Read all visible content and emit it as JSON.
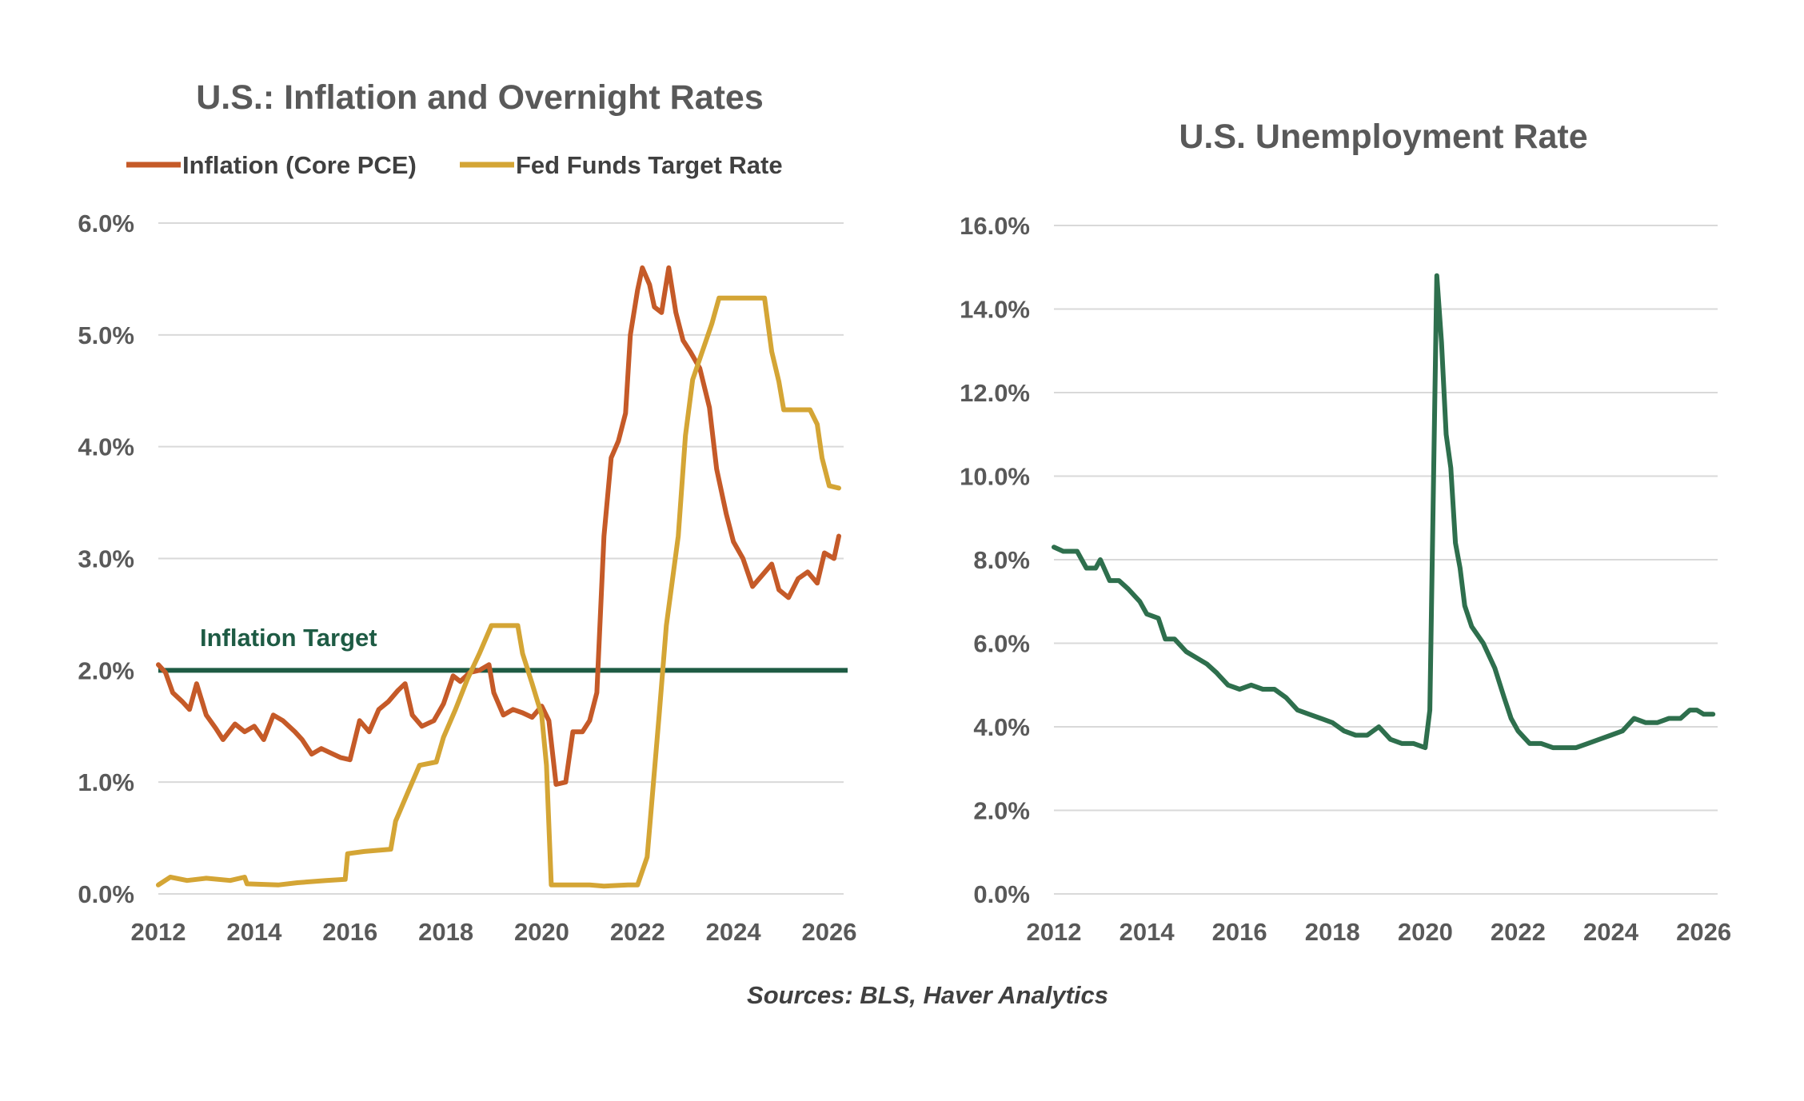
{
  "source_note": "Sources: BLS, Haver Analytics",
  "colors": {
    "inflation": "#c55a28",
    "fed_funds": "#d4a535",
    "target": "#1e5b44",
    "unemployment": "#2e6f4d",
    "grid": "#d9d9d9",
    "text": "#595959"
  },
  "chart_data": [
    {
      "type": "line",
      "title": "U.S.: Inflation and Overnight Rates",
      "xlabel": "",
      "ylabel": "",
      "xlim": [
        2012,
        2026.3
      ],
      "ylim": [
        0,
        6
      ],
      "x_ticks": [
        2012,
        2014,
        2016,
        2018,
        2020,
        2022,
        2024,
        2026
      ],
      "x_tick_labels": [
        "2012",
        "2014",
        "2016",
        "2018",
        "2020",
        "2022",
        "2024",
        "2026"
      ],
      "y_ticks": [
        0,
        1,
        2,
        3,
        4,
        5,
        6
      ],
      "y_tick_labels": [
        "0.0%",
        "1.0%",
        "2.0%",
        "3.0%",
        "4.0%",
        "5.0%",
        "6.0%"
      ],
      "grid": true,
      "legend": "top",
      "series": [
        {
          "name": "Inflation (Core PCE)",
          "color": "#c55a28",
          "points": [
            [
              2012.0,
              2.05
            ],
            [
              2012.15,
              1.98
            ],
            [
              2012.3,
              1.8
            ],
            [
              2012.5,
              1.72
            ],
            [
              2012.65,
              1.65
            ],
            [
              2012.8,
              1.88
            ],
            [
              2013.0,
              1.6
            ],
            [
              2013.2,
              1.48
            ],
            [
              2013.35,
              1.38
            ],
            [
              2013.6,
              1.52
            ],
            [
              2013.8,
              1.45
            ],
            [
              2014.0,
              1.5
            ],
            [
              2014.2,
              1.38
            ],
            [
              2014.4,
              1.6
            ],
            [
              2014.6,
              1.55
            ],
            [
              2014.85,
              1.45
            ],
            [
              2015.0,
              1.38
            ],
            [
              2015.2,
              1.25
            ],
            [
              2015.4,
              1.3
            ],
            [
              2015.6,
              1.26
            ],
            [
              2015.8,
              1.22
            ],
            [
              2016.0,
              1.2
            ],
            [
              2016.2,
              1.55
            ],
            [
              2016.4,
              1.45
            ],
            [
              2016.6,
              1.65
            ],
            [
              2016.8,
              1.72
            ],
            [
              2017.0,
              1.82
            ],
            [
              2017.15,
              1.88
            ],
            [
              2017.3,
              1.6
            ],
            [
              2017.5,
              1.5
            ],
            [
              2017.75,
              1.55
            ],
            [
              2017.95,
              1.7
            ],
            [
              2018.15,
              1.95
            ],
            [
              2018.3,
              1.9
            ],
            [
              2018.5,
              1.98
            ],
            [
              2018.7,
              2.0
            ],
            [
              2018.9,
              2.05
            ],
            [
              2019.0,
              1.8
            ],
            [
              2019.2,
              1.6
            ],
            [
              2019.4,
              1.65
            ],
            [
              2019.6,
              1.62
            ],
            [
              2019.8,
              1.58
            ],
            [
              2020.0,
              1.68
            ],
            [
              2020.15,
              1.55
            ],
            [
              2020.3,
              0.98
            ],
            [
              2020.5,
              1.0
            ],
            [
              2020.65,
              1.45
            ],
            [
              2020.85,
              1.45
            ],
            [
              2021.0,
              1.55
            ],
            [
              2021.15,
              1.8
            ],
            [
              2021.3,
              3.2
            ],
            [
              2021.45,
              3.9
            ],
            [
              2021.6,
              4.05
            ],
            [
              2021.75,
              4.3
            ],
            [
              2021.85,
              5.0
            ],
            [
              2022.0,
              5.4
            ],
            [
              2022.1,
              5.6
            ],
            [
              2022.25,
              5.45
            ],
            [
              2022.35,
              5.25
            ],
            [
              2022.5,
              5.2
            ],
            [
              2022.65,
              5.6
            ],
            [
              2022.8,
              5.2
            ],
            [
              2022.95,
              4.95
            ],
            [
              2023.1,
              4.85
            ],
            [
              2023.3,
              4.7
            ],
            [
              2023.5,
              4.35
            ],
            [
              2023.65,
              3.8
            ],
            [
              2023.85,
              3.4
            ],
            [
              2024.0,
              3.15
            ],
            [
              2024.2,
              3.0
            ],
            [
              2024.4,
              2.75
            ],
            [
              2024.6,
              2.85
            ],
            [
              2024.8,
              2.95
            ],
            [
              2024.95,
              2.72
            ],
            [
              2025.15,
              2.65
            ],
            [
              2025.35,
              2.82
            ],
            [
              2025.55,
              2.88
            ],
            [
              2025.75,
              2.78
            ],
            [
              2025.9,
              3.05
            ],
            [
              2026.1,
              3.0
            ],
            [
              2026.2,
              3.2
            ]
          ]
        },
        {
          "name": "Fed Funds Target Rate",
          "color": "#d4a535",
          "points": [
            [
              2012.0,
              0.08
            ],
            [
              2012.25,
              0.15
            ],
            [
              2012.6,
              0.12
            ],
            [
              2013.0,
              0.14
            ],
            [
              2013.5,
              0.12
            ],
            [
              2013.8,
              0.15
            ],
            [
              2013.85,
              0.09
            ],
            [
              2014.5,
              0.08
            ],
            [
              2014.9,
              0.1
            ],
            [
              2015.5,
              0.12
            ],
            [
              2015.9,
              0.13
            ],
            [
              2015.95,
              0.36
            ],
            [
              2016.3,
              0.38
            ],
            [
              2016.85,
              0.4
            ],
            [
              2016.95,
              0.65
            ],
            [
              2017.2,
              0.9
            ],
            [
              2017.45,
              1.15
            ],
            [
              2017.8,
              1.18
            ],
            [
              2017.95,
              1.4
            ],
            [
              2018.2,
              1.65
            ],
            [
              2018.45,
              1.92
            ],
            [
              2018.7,
              2.15
            ],
            [
              2018.95,
              2.4
            ],
            [
              2019.5,
              2.4
            ],
            [
              2019.6,
              2.15
            ],
            [
              2019.8,
              1.88
            ],
            [
              2020.0,
              1.6
            ],
            [
              2020.1,
              1.15
            ],
            [
              2020.2,
              0.08
            ],
            [
              2020.5,
              0.08
            ],
            [
              2021.0,
              0.08
            ],
            [
              2021.3,
              0.07
            ],
            [
              2021.8,
              0.08
            ],
            [
              2022.0,
              0.08
            ],
            [
              2022.2,
              0.33
            ],
            [
              2022.45,
              1.6
            ],
            [
              2022.6,
              2.4
            ],
            [
              2022.85,
              3.2
            ],
            [
              2023.0,
              4.1
            ],
            [
              2023.15,
              4.6
            ],
            [
              2023.35,
              4.85
            ],
            [
              2023.55,
              5.1
            ],
            [
              2023.7,
              5.33
            ],
            [
              2024.3,
              5.33
            ],
            [
              2024.65,
              5.33
            ],
            [
              2024.8,
              4.85
            ],
            [
              2024.95,
              4.58
            ],
            [
              2025.05,
              4.33
            ],
            [
              2025.6,
              4.33
            ],
            [
              2025.75,
              4.2
            ],
            [
              2025.85,
              3.9
            ],
            [
              2026.0,
              3.65
            ],
            [
              2026.2,
              3.63
            ]
          ]
        }
      ],
      "reference_lines": [
        {
          "label": "Inflation Target",
          "y": 2.0,
          "color": "#1e5b44"
        }
      ]
    },
    {
      "type": "line",
      "title": "U.S. Unemployment Rate",
      "xlabel": "",
      "ylabel": "",
      "xlim": [
        2012,
        2026.3
      ],
      "ylim": [
        0,
        16
      ],
      "x_ticks": [
        2012,
        2014,
        2016,
        2018,
        2020,
        2022,
        2024,
        2026
      ],
      "x_tick_labels": [
        "2012",
        "2014",
        "2016",
        "2018",
        "2020",
        "2022",
        "2024",
        "2026"
      ],
      "y_ticks": [
        0,
        2,
        4,
        6,
        8,
        10,
        12,
        14,
        16
      ],
      "y_tick_labels": [
        "0.0%",
        "2.0%",
        "4.0%",
        "6.0%",
        "8.0%",
        "10.0%",
        "12.0%",
        "14.0%",
        "16.0%"
      ],
      "grid": true,
      "series": [
        {
          "name": "",
          "color": "#2e6f4d",
          "points": [
            [
              2012.0,
              8.3
            ],
            [
              2012.2,
              8.2
            ],
            [
              2012.5,
              8.2
            ],
            [
              2012.7,
              7.8
            ],
            [
              2012.9,
              7.8
            ],
            [
              2013.0,
              8.0
            ],
            [
              2013.2,
              7.5
            ],
            [
              2013.4,
              7.5
            ],
            [
              2013.6,
              7.3
            ],
            [
              2013.85,
              7.0
            ],
            [
              2014.0,
              6.7
            ],
            [
              2014.25,
              6.6
            ],
            [
              2014.4,
              6.1
            ],
            [
              2014.6,
              6.1
            ],
            [
              2014.85,
              5.8
            ],
            [
              2015.0,
              5.7
            ],
            [
              2015.3,
              5.5
            ],
            [
              2015.5,
              5.3
            ],
            [
              2015.75,
              5.0
            ],
            [
              2016.0,
              4.9
            ],
            [
              2016.25,
              5.0
            ],
            [
              2016.5,
              4.9
            ],
            [
              2016.75,
              4.9
            ],
            [
              2017.0,
              4.7
            ],
            [
              2017.25,
              4.4
            ],
            [
              2017.5,
              4.3
            ],
            [
              2017.75,
              4.2
            ],
            [
              2018.0,
              4.1
            ],
            [
              2018.25,
              3.9
            ],
            [
              2018.5,
              3.8
            ],
            [
              2018.75,
              3.8
            ],
            [
              2019.0,
              4.0
            ],
            [
              2019.25,
              3.7
            ],
            [
              2019.5,
              3.6
            ],
            [
              2019.75,
              3.6
            ],
            [
              2020.0,
              3.5
            ],
            [
              2020.1,
              4.4
            ],
            [
              2020.25,
              14.8
            ],
            [
              2020.35,
              13.2
            ],
            [
              2020.45,
              11.0
            ],
            [
              2020.55,
              10.2
            ],
            [
              2020.65,
              8.4
            ],
            [
              2020.75,
              7.8
            ],
            [
              2020.85,
              6.9
            ],
            [
              2021.0,
              6.4
            ],
            [
              2021.25,
              6.0
            ],
            [
              2021.5,
              5.4
            ],
            [
              2021.7,
              4.7
            ],
            [
              2021.85,
              4.2
            ],
            [
              2022.0,
              3.9
            ],
            [
              2022.25,
              3.6
            ],
            [
              2022.5,
              3.6
            ],
            [
              2022.75,
              3.5
            ],
            [
              2023.0,
              3.5
            ],
            [
              2023.25,
              3.5
            ],
            [
              2023.5,
              3.6
            ],
            [
              2023.75,
              3.7
            ],
            [
              2024.0,
              3.8
            ],
            [
              2024.25,
              3.9
            ],
            [
              2024.5,
              4.2
            ],
            [
              2024.75,
              4.1
            ],
            [
              2025.0,
              4.1
            ],
            [
              2025.25,
              4.2
            ],
            [
              2025.5,
              4.2
            ],
            [
              2025.7,
              4.4
            ],
            [
              2025.85,
              4.4
            ],
            [
              2026.0,
              4.3
            ],
            [
              2026.2,
              4.3
            ]
          ]
        }
      ]
    }
  ]
}
